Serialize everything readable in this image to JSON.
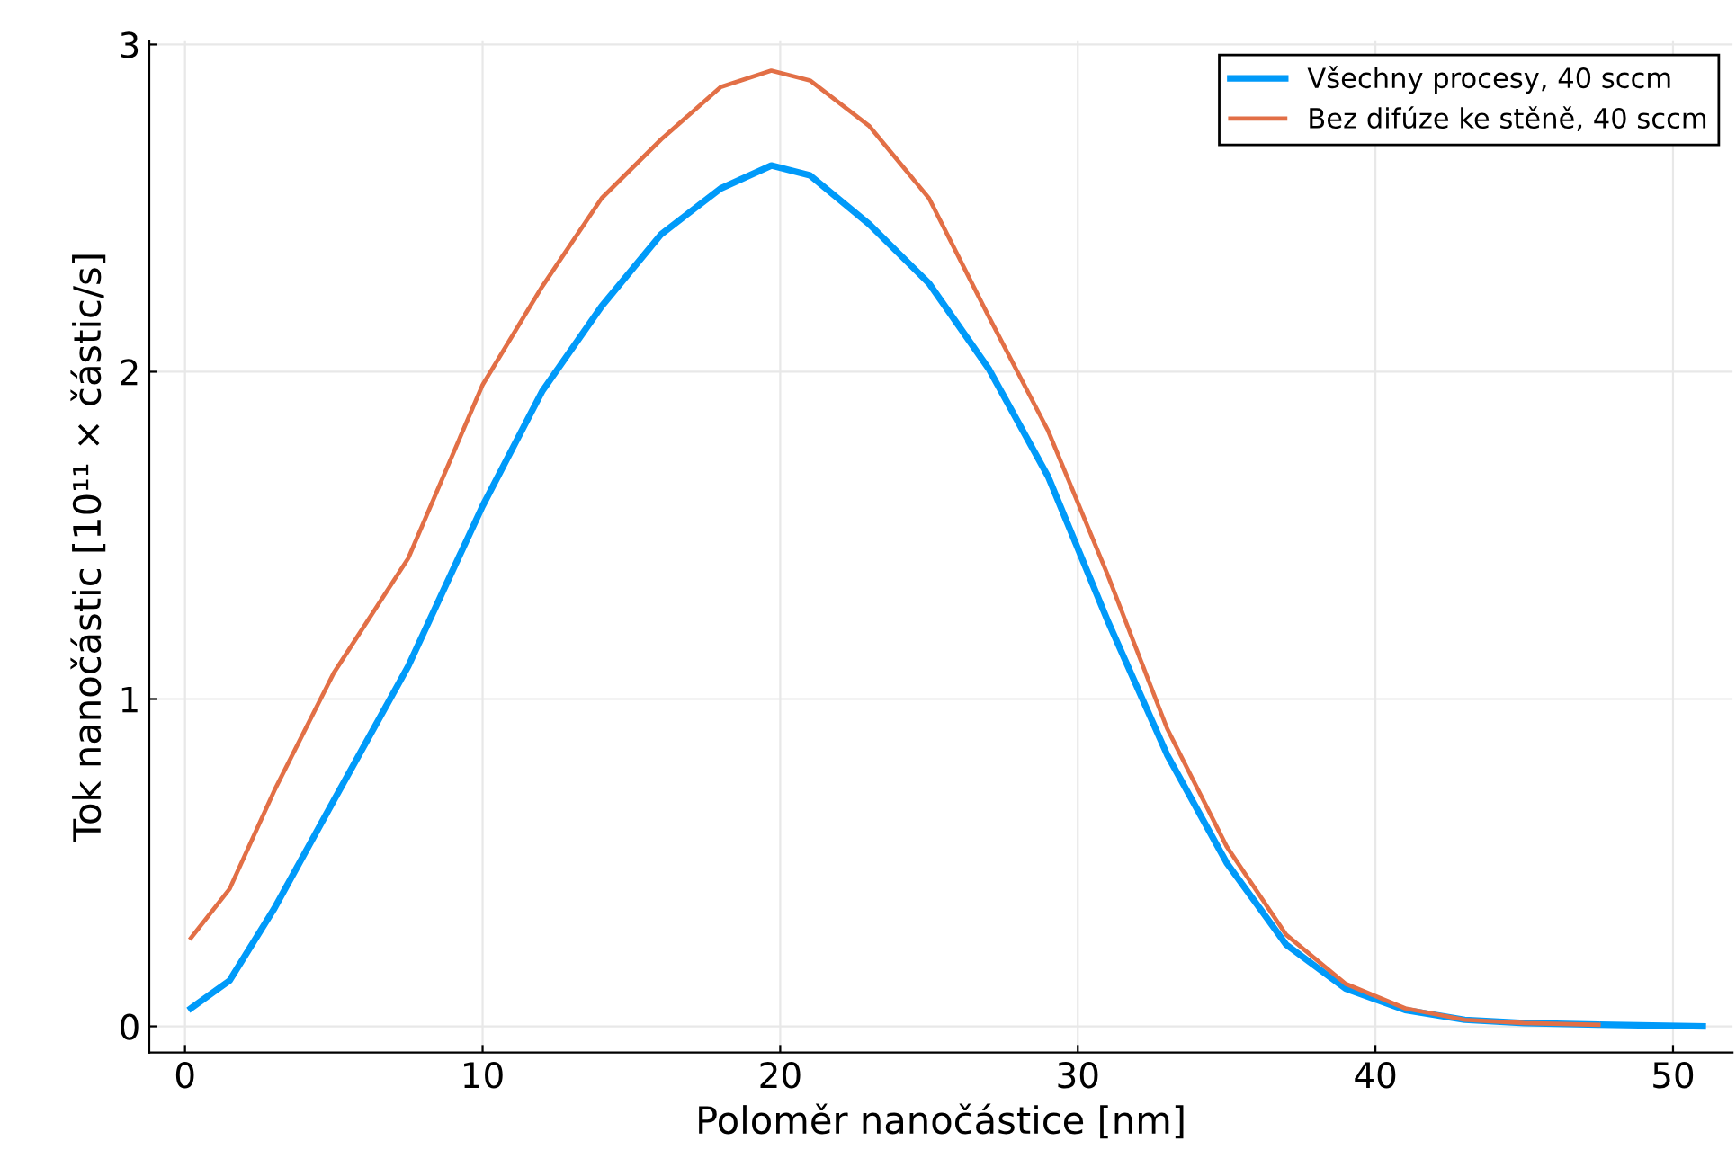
{
  "chart_data": {
    "type": "line",
    "xlabel": "Poloměr nanočástice [nm]",
    "ylabel": "Tok nanočástic [10¹¹ × částic/s]",
    "xlim": [
      -1.2,
      52
    ],
    "ylim": [
      -0.08,
      3.01
    ],
    "xticks": [
      0,
      10,
      20,
      30,
      40,
      50
    ],
    "yticks": [
      0,
      1,
      2,
      3
    ],
    "grid": true,
    "legend": "top right",
    "series": [
      {
        "name": "Všechny procesy, 40 sccm",
        "color": "#009af9",
        "x": [
          0.2,
          1.5,
          3,
          5,
          7.5,
          10,
          12,
          14,
          16,
          18,
          19.7,
          21,
          23,
          25,
          27,
          29,
          31,
          33,
          35,
          37,
          39,
          41,
          43,
          45,
          47.5,
          51
        ],
        "values": [
          0.055,
          0.14,
          0.36,
          0.69,
          1.1,
          1.59,
          1.94,
          2.2,
          2.42,
          2.56,
          2.63,
          2.6,
          2.45,
          2.27,
          2.01,
          1.68,
          1.24,
          0.83,
          0.5,
          0.25,
          0.115,
          0.05,
          0.02,
          0.01,
          0.005,
          0.0
        ]
      },
      {
        "name": "Bez difúze ke stěně, 40 sccm",
        "color": "#e26f46",
        "x": [
          0.2,
          1.5,
          3,
          5,
          7.5,
          10,
          12,
          14,
          16,
          18,
          19.7,
          21,
          23,
          25,
          27,
          29,
          31,
          33,
          35,
          37,
          39,
          41,
          43,
          45,
          47.5
        ],
        "values": [
          0.27,
          0.42,
          0.72,
          1.08,
          1.43,
          1.96,
          2.26,
          2.53,
          2.71,
          2.87,
          2.92,
          2.89,
          2.75,
          2.53,
          2.17,
          1.82,
          1.38,
          0.91,
          0.55,
          0.28,
          0.13,
          0.055,
          0.02,
          0.01,
          0.005
        ]
      }
    ]
  }
}
